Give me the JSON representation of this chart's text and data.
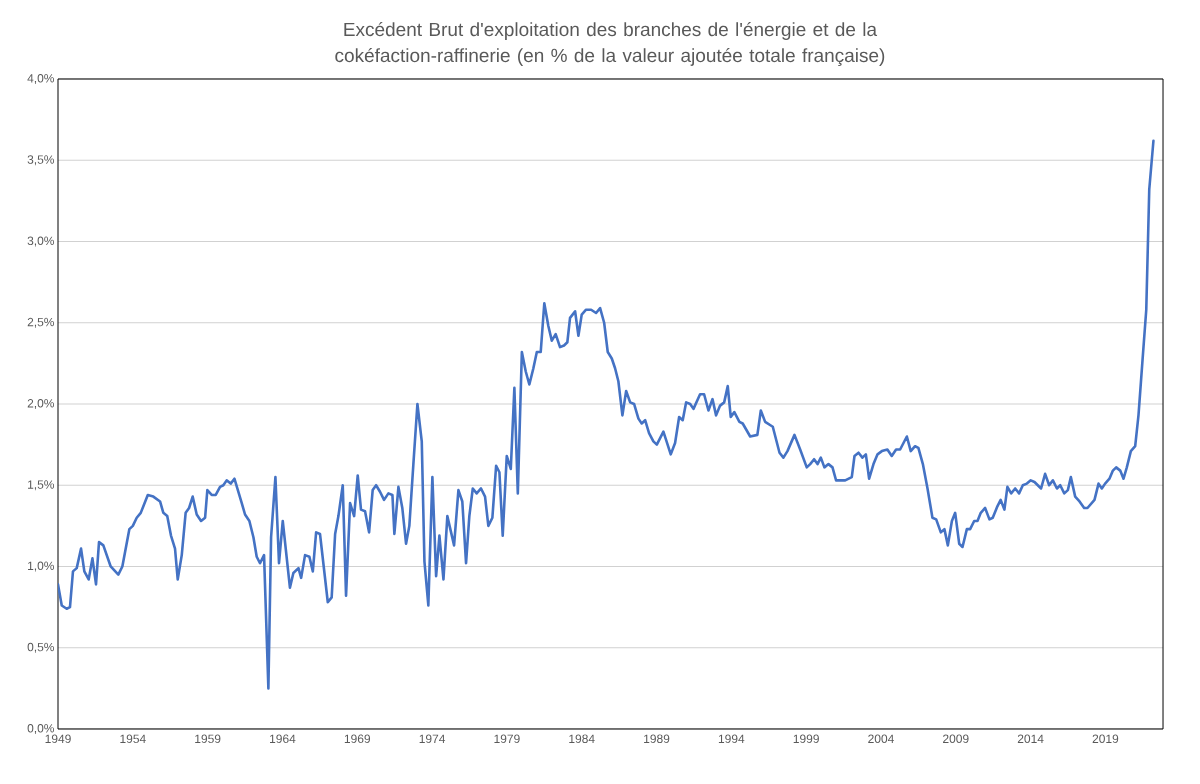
{
  "chart_data": {
    "type": "line",
    "title": "Excédent Brut d'exploitation des branches de l'énergie et de la cokéfaction-raffinerie (en % de la valeur ajoutée totale française)",
    "xlim": [
      1949,
      2022.85
    ],
    "xticks": [
      1949,
      1954,
      1959,
      1964,
      1969,
      1974,
      1979,
      1984,
      1989,
      1994,
      1999,
      2004,
      2009,
      2014,
      2019
    ],
    "ylim": [
      0,
      4
    ],
    "yticks": [
      {
        "value": 0,
        "label": "0,0%"
      },
      {
        "value": 0.5,
        "label": "0,5%"
      },
      {
        "value": 1,
        "label": "1,0%"
      },
      {
        "value": 1.5,
        "label": "1,5%"
      },
      {
        "value": 2,
        "label": "2,0%"
      },
      {
        "value": 2.5,
        "label": "2,5%"
      },
      {
        "value": 3,
        "label": "3,0%"
      },
      {
        "value": 3.5,
        "label": "3,5%"
      },
      {
        "value": 4,
        "label": "4,0%"
      }
    ],
    "grid": "y",
    "series": [
      {
        "color": "#4472c4",
        "x": [
          1949.0,
          1949.25,
          1949.58,
          1949.8,
          1950.0,
          1950.25,
          1950.54,
          1950.76,
          1951.05,
          1951.3,
          1951.54,
          1951.74,
          1952.03,
          1952.52,
          1953.03,
          1953.3,
          1953.77,
          1954.0,
          1954.26,
          1954.53,
          1955.0,
          1955.37,
          1955.82,
          1956.04,
          1956.3,
          1956.55,
          1956.82,
          1957.0,
          1957.27,
          1957.53,
          1957.76,
          1958.0,
          1958.27,
          1958.56,
          1958.83,
          1958.98,
          1959.27,
          1959.54,
          1959.83,
          1960.05,
          1960.27,
          1960.54,
          1960.79,
          1961.28,
          1961.5,
          1961.79,
          1962.06,
          1962.28,
          1962.5,
          1962.77,
          1963.06,
          1963.24,
          1963.53,
          1963.77,
          1964.02,
          1964.5,
          1964.73,
          1965.07,
          1965.25,
          1965.51,
          1965.8,
          1966.03,
          1966.25,
          1966.51,
          1967.03,
          1967.29,
          1967.52,
          1967.74,
          1968.03,
          1968.25,
          1968.52,
          1968.79,
          1969.03,
          1969.25,
          1969.52,
          1969.79,
          1970.03,
          1970.26,
          1970.52,
          1970.79,
          1971.08,
          1971.35,
          1971.48,
          1971.75,
          1972.01,
          1972.26,
          1972.48,
          1972.75,
          1973.02,
          1973.31,
          1973.49,
          1973.75,
          1974.02,
          1974.27,
          1974.49,
          1974.76,
          1975.02,
          1975.47,
          1975.76,
          1976.02,
          1976.27,
          1976.49,
          1976.72,
          1976.98,
          1977.27,
          1977.54,
          1977.76,
          1978.03,
          1978.28,
          1978.5,
          1978.72,
          1978.99,
          1979.26,
          1979.5,
          1979.73,
          1980.0,
          1980.26,
          1980.5,
          1980.77,
          1981.0,
          1981.26,
          1981.5,
          1981.77,
          1982.0,
          1982.26,
          1982.55,
          1982.82,
          1983.04,
          1983.22,
          1983.56,
          1983.78,
          1984.0,
          1984.29,
          1984.63,
          1984.96,
          1985.23,
          1985.5,
          1985.74,
          1986.01,
          1986.23,
          1986.45,
          1986.72,
          1986.97,
          1987.24,
          1987.5,
          1987.79,
          1988.01,
          1988.24,
          1988.5,
          1988.79,
          1989.02,
          1989.46,
          1989.95,
          1990.24,
          1990.51,
          1990.75,
          1990.98,
          1991.25,
          1991.47,
          1991.91,
          1992.18,
          1992.47,
          1992.74,
          1992.98,
          1993.25,
          1993.52,
          1993.76,
          1993.96,
          1994.2,
          1994.54,
          1994.76,
          1995.26,
          1995.74,
          1995.97,
          1996.26,
          1996.77,
          1997.22,
          1997.48,
          1997.75,
          1998.22,
          1998.6,
          1999.04,
          1999.27,
          1999.53,
          1999.76,
          1999.98,
          2000.22,
          2000.49,
          2000.76,
          2001.0,
          2001.27,
          2001.61,
          2002.05,
          2002.23,
          2002.5,
          2002.76,
          2002.99,
          2003.21,
          2003.5,
          2003.77,
          2004.06,
          2004.43,
          2004.72,
          2005.01,
          2005.28,
          2005.73,
          2005.99,
          2006.28,
          2006.5,
          2006.8,
          2007.11,
          2007.44,
          2007.69,
          2008.0,
          2008.24,
          2008.47,
          2008.74,
          2008.96,
          2009.23,
          2009.45,
          2009.74,
          2009.96,
          2010.23,
          2010.45,
          2010.67,
          2010.96,
          2011.25,
          2011.47,
          2011.78,
          2012.0,
          2012.25,
          2012.45,
          2012.7,
          2012.97,
          2013.23,
          2013.48,
          2013.75,
          2014.01,
          2014.26,
          2014.7,
          2014.97,
          2015.24,
          2015.49,
          2015.76,
          2015.98,
          2016.25,
          2016.49,
          2016.69,
          2016.98,
          2017.27,
          2017.58,
          2017.8,
          2018.27,
          2018.54,
          2018.76,
          2018.98,
          2019.27,
          2019.5,
          2019.72,
          2019.99,
          2020.21,
          2020.43,
          2020.7,
          2020.99,
          2021.21,
          2021.48,
          2021.73,
          2021.93,
          2022.21
        ],
        "values": [
          0.89,
          0.76,
          0.74,
          0.75,
          0.97,
          0.99,
          1.11,
          0.97,
          0.92,
          1.05,
          0.89,
          1.15,
          1.13,
          1.0,
          0.95,
          1.0,
          1.23,
          1.25,
          1.3,
          1.33,
          1.44,
          1.43,
          1.4,
          1.33,
          1.31,
          1.19,
          1.11,
          0.92,
          1.07,
          1.33,
          1.36,
          1.43,
          1.32,
          1.28,
          1.3,
          1.47,
          1.44,
          1.44,
          1.49,
          1.5,
          1.53,
          1.51,
          1.54,
          1.39,
          1.32,
          1.28,
          1.18,
          1.06,
          1.02,
          1.07,
          0.25,
          1.18,
          1.55,
          1.02,
          1.28,
          0.87,
          0.96,
          0.99,
          0.93,
          1.07,
          1.06,
          0.97,
          1.21,
          1.2,
          0.78,
          0.81,
          1.2,
          1.31,
          1.5,
          0.82,
          1.39,
          1.31,
          1.56,
          1.35,
          1.34,
          1.21,
          1.47,
          1.5,
          1.46,
          1.41,
          1.45,
          1.44,
          1.2,
          1.49,
          1.36,
          1.14,
          1.25,
          1.63,
          2.0,
          1.77,
          1.03,
          0.76,
          1.55,
          0.94,
          1.19,
          0.92,
          1.31,
          1.13,
          1.47,
          1.4,
          1.02,
          1.31,
          1.48,
          1.45,
          1.48,
          1.43,
          1.25,
          1.3,
          1.62,
          1.58,
          1.19,
          1.68,
          1.6,
          2.1,
          1.45,
          2.32,
          2.2,
          2.12,
          2.22,
          2.32,
          2.32,
          2.62,
          2.48,
          2.39,
          2.43,
          2.35,
          2.36,
          2.38,
          2.53,
          2.57,
          2.42,
          2.55,
          2.58,
          2.58,
          2.56,
          2.59,
          2.5,
          2.32,
          2.28,
          2.22,
          2.14,
          1.93,
          2.08,
          2.01,
          2.0,
          1.91,
          1.88,
          1.9,
          1.82,
          1.77,
          1.75,
          1.83,
          1.69,
          1.76,
          1.92,
          1.9,
          2.01,
          2.0,
          1.97,
          2.06,
          2.06,
          1.96,
          2.03,
          1.93,
          1.99,
          2.01,
          2.11,
          1.92,
          1.95,
          1.89,
          1.88,
          1.8,
          1.81,
          1.96,
          1.89,
          1.86,
          1.7,
          1.67,
          1.71,
          1.81,
          1.72,
          1.61,
          1.63,
          1.66,
          1.63,
          1.67,
          1.61,
          1.63,
          1.61,
          1.53,
          1.53,
          1.53,
          1.55,
          1.68,
          1.7,
          1.67,
          1.69,
          1.54,
          1.63,
          1.69,
          1.71,
          1.72,
          1.68,
          1.72,
          1.72,
          1.8,
          1.71,
          1.74,
          1.73,
          1.63,
          1.48,
          1.3,
          1.29,
          1.21,
          1.23,
          1.13,
          1.28,
          1.33,
          1.14,
          1.12,
          1.23,
          1.23,
          1.28,
          1.28,
          1.33,
          1.36,
          1.29,
          1.3,
          1.37,
          1.41,
          1.35,
          1.49,
          1.45,
          1.48,
          1.45,
          1.5,
          1.51,
          1.53,
          1.52,
          1.48,
          1.57,
          1.5,
          1.53,
          1.48,
          1.5,
          1.45,
          1.47,
          1.55,
          1.43,
          1.4,
          1.36,
          1.36,
          1.41,
          1.51,
          1.48,
          1.51,
          1.54,
          1.59,
          1.61,
          1.59,
          1.54,
          1.61,
          1.71,
          1.74,
          1.93,
          2.27,
          2.58,
          3.32,
          3.62
        ]
      }
    ]
  }
}
